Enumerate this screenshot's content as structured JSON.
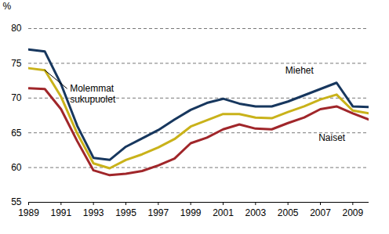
{
  "chart_data": {
    "type": "line",
    "x": [
      1989,
      1990,
      1991,
      1992,
      1993,
      1994,
      1995,
      1996,
      1997,
      1998,
      1999,
      2000,
      2001,
      2002,
      2003,
      2004,
      2005,
      2006,
      2007,
      2008,
      2009,
      2010
    ],
    "series": [
      {
        "name": "Miehet",
        "color": "#17375e",
        "values": [
          77.0,
          76.7,
          72.0,
          66.0,
          61.4,
          61.1,
          63.0,
          64.2,
          65.4,
          66.9,
          68.3,
          69.3,
          69.9,
          69.2,
          68.8,
          68.8,
          69.5,
          70.4,
          71.3,
          72.2,
          68.8,
          68.7
        ]
      },
      {
        "name": "Molemmat\nsukupuolet",
        "color": "#c9b21a",
        "values": [
          74.3,
          74.0,
          70.2,
          64.9,
          60.6,
          59.9,
          61.1,
          61.9,
          62.9,
          64.1,
          65.9,
          66.8,
          67.7,
          67.7,
          67.2,
          67.1,
          68.0,
          68.8,
          69.8,
          70.5,
          68.2,
          67.8
        ]
      },
      {
        "name": "Naiset",
        "color": "#a0262a",
        "values": [
          71.4,
          71.3,
          68.4,
          63.8,
          59.6,
          58.9,
          59.1,
          59.5,
          60.3,
          61.3,
          63.5,
          64.3,
          65.5,
          66.2,
          65.6,
          65.5,
          66.4,
          67.2,
          68.4,
          68.8,
          67.8,
          66.9
        ]
      }
    ],
    "y_label": "%",
    "xlim": [
      1989,
      2010
    ],
    "xticks": [
      1989,
      1991,
      1993,
      1995,
      1997,
      1999,
      2001,
      2003,
      2005,
      2007,
      2009
    ],
    "ylim": [
      55,
      80
    ],
    "yticks": [
      55,
      60,
      65,
      70,
      75,
      80
    ],
    "grid": true
  }
}
